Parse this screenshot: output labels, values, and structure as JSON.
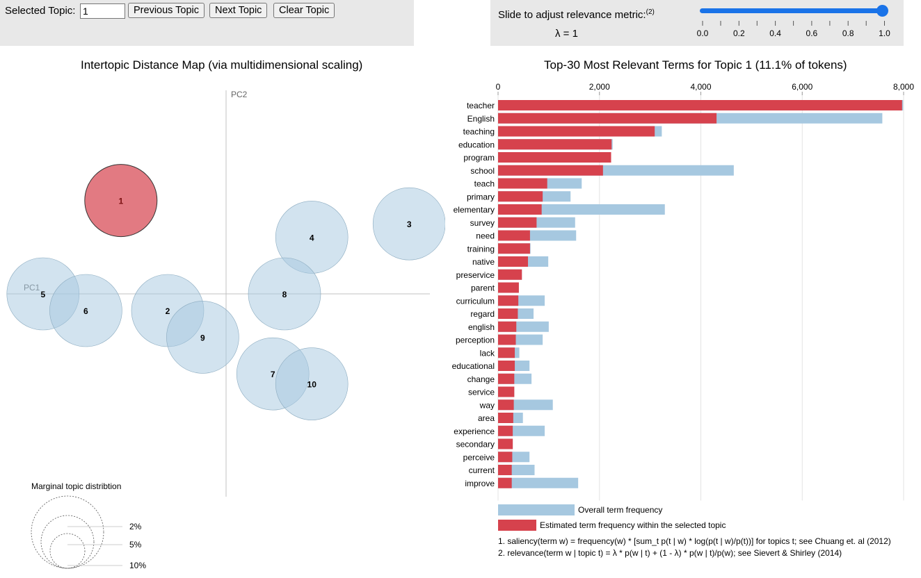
{
  "controls": {
    "selected_topic_label": "Selected Topic:",
    "selected_topic_value": "1",
    "prev_label": "Previous Topic",
    "next_label": "Next Topic",
    "clear_label": "Clear Topic",
    "slider_label": "Slide to adjust relevance metric:",
    "slider_footnote": "(2)",
    "lambda_text": "λ = 1",
    "lambda_value": 1.0,
    "slider_ticks": [
      "0.0",
      "0.2",
      "0.4",
      "0.6",
      "0.8",
      "1.0"
    ]
  },
  "left_title": "Intertopic Distance Map (via multidimensional scaling)",
  "right_title": "Top-30 Most Relevant Terms for Topic 1 (11.1% of tokens)",
  "chart_data": [
    {
      "type": "scatter",
      "title": "Intertopic Distance Map (via multidimensional scaling)",
      "xlabel": "PC1",
      "ylabel": "PC2",
      "selected_topic": 1,
      "colors": {
        "selected": "#d6424d",
        "default": "#a6c8e0",
        "axis": "#c0c0c0"
      },
      "topics": [
        {
          "id": "1",
          "x": -0.27,
          "y": 0.28
        },
        {
          "id": "2",
          "x": -0.15,
          "y": -0.05
        },
        {
          "id": "3",
          "x": 0.47,
          "y": 0.21
        },
        {
          "id": "4",
          "x": 0.22,
          "y": 0.17
        },
        {
          "id": "5",
          "x": -0.47,
          "y": 0.0
        },
        {
          "id": "6",
          "x": -0.36,
          "y": -0.05
        },
        {
          "id": "7",
          "x": 0.12,
          "y": -0.24
        },
        {
          "id": "8",
          "x": 0.15,
          "y": 0.0
        },
        {
          "id": "9",
          "x": -0.06,
          "y": -0.13
        },
        {
          "id": "10",
          "x": 0.22,
          "y": -0.27
        }
      ],
      "marginal_legend": {
        "title": "Marginal topic distribtion",
        "labels": [
          "2%",
          "5%",
          "10%"
        ]
      }
    },
    {
      "type": "bar",
      "orientation": "horizontal",
      "title": "Top-30 Most Relevant Terms for Topic 1 (11.1% of tokens)",
      "xlim": [
        0,
        8000
      ],
      "x_ticks": [
        "0",
        "2,000",
        "4,000",
        "6,000",
        "8,000"
      ],
      "x_tick_values": [
        0,
        2000,
        4000,
        6000,
        8000
      ],
      "categories": [
        "teacher",
        "English",
        "teaching",
        "education",
        "program",
        "school",
        "teach",
        "primary",
        "elementary",
        "survey",
        "need",
        "training",
        "native",
        "preservice",
        "parent",
        "curriculum",
        "regard",
        "english",
        "perception",
        "lack",
        "educational",
        "change",
        "service",
        "way",
        "area",
        "experience",
        "secondary",
        "perceive",
        "current",
        "improve"
      ],
      "series": [
        {
          "name": "Overall term frequency",
          "color": "#a6c8e0",
          "values": [
            7990,
            7580,
            3230,
            2260,
            2230,
            4650,
            1650,
            1430,
            3290,
            1520,
            1540,
            640,
            990,
            470,
            410,
            920,
            700,
            1000,
            880,
            420,
            620,
            660,
            320,
            1080,
            490,
            920,
            290,
            620,
            720,
            1580
          ]
        },
        {
          "name": "Estimated term frequency within the selected topic",
          "color": "#d6424d",
          "values": [
            7970,
            4310,
            3090,
            2240,
            2230,
            2070,
            970,
            880,
            860,
            760,
            630,
            630,
            590,
            470,
            410,
            400,
            390,
            360,
            350,
            330,
            330,
            320,
            320,
            310,
            300,
            290,
            290,
            280,
            270,
            270
          ]
        }
      ],
      "notes": [
        "1. saliency(term w) = frequency(w) * [sum_t p(t | w) * log(p(t | w)/p(t))] for topics t; see Chuang et. al (2012)",
        "2. relevance(term w | topic t) = λ * p(w | t) + (1 - λ) * p(w | t)/p(w); see Sievert & Shirley (2014)"
      ]
    }
  ]
}
